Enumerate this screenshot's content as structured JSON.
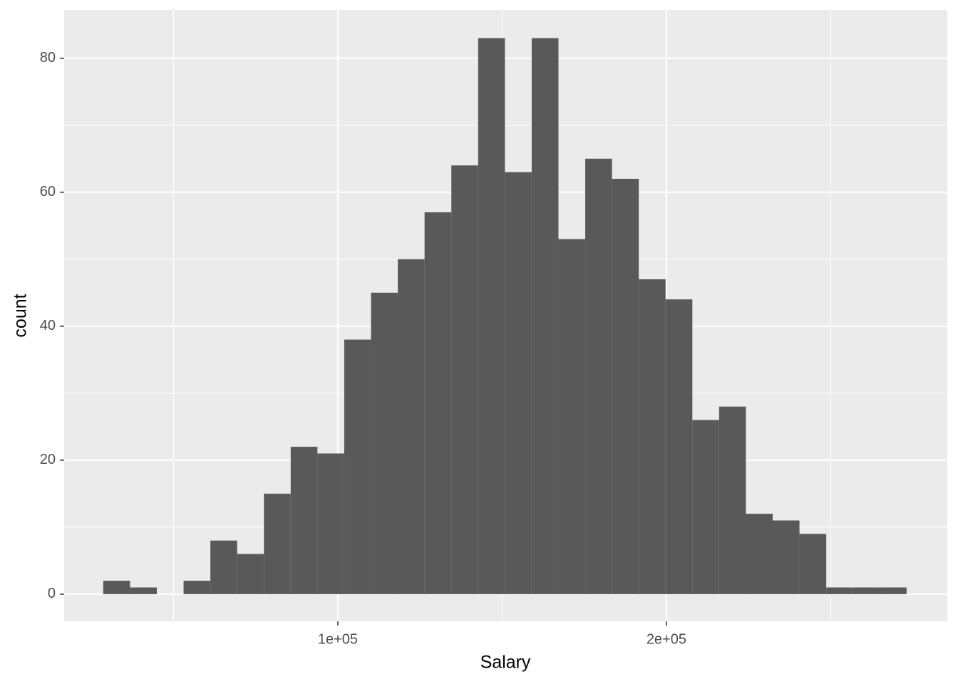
{
  "chart_data": {
    "type": "histogram",
    "x_label": "Salary",
    "y_label": "count",
    "bins": [
      28600,
      36750,
      44900,
      53050,
      61200,
      69350,
      77500,
      85650,
      93800,
      101950,
      110100,
      118250,
      126400,
      134550,
      142700,
      150850,
      159000,
      167150,
      175300,
      183450,
      191600,
      199750,
      207900,
      216050,
      224200,
      232350,
      240500,
      248650,
      256800,
      264950,
      273100
    ],
    "counts": [
      2,
      1,
      0,
      2,
      8,
      6,
      15,
      22,
      21,
      38,
      45,
      50,
      57,
      64,
      83,
      63,
      83,
      53,
      65,
      62,
      47,
      44,
      26,
      28,
      12,
      11,
      9,
      1,
      1,
      1
    ],
    "color": "#595959",
    "xlim": [
      16700,
      285500
    ],
    "ylim": [
      -4.05,
      87.2
    ],
    "xticks": [
      {
        "value": 100000,
        "label": "1e+05"
      },
      {
        "value": 200000,
        "label": "2e+05"
      }
    ],
    "yticks": [
      0,
      20,
      40,
      60,
      80
    ],
    "x_minor_ticks": [
      50000,
      150000,
      250000
    ],
    "y_minor_ticks": [
      10,
      30,
      50,
      70
    ],
    "grid": true
  }
}
